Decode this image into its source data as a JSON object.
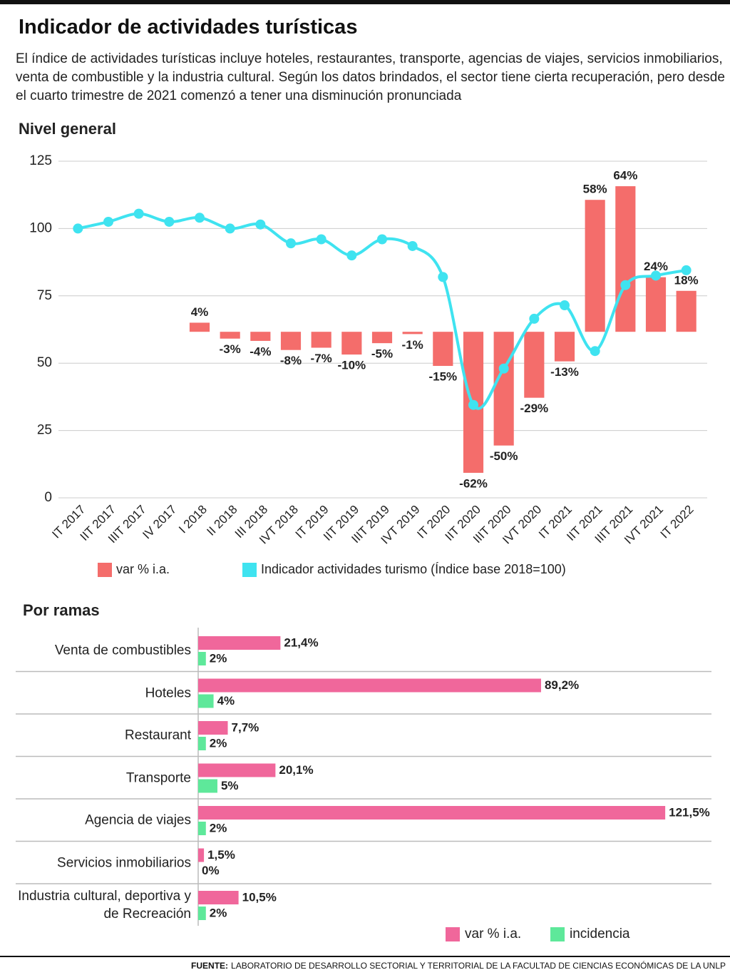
{
  "header": {
    "title": "Indicador de actividades turísticas",
    "subtitle": "El índice de actividades turísticas incluye hoteles, restaurantes,  transporte, agencias de viajes, servicios inmobiliarios, venta de combustible y la industria cultural. Según los datos brindados, el sector tiene cierta recuperación, pero desde el cuarto trimestre de 2021 comenzó a tener una disminución pronunciada"
  },
  "chart_data": [
    {
      "type": "combo",
      "title": "Nivel general",
      "categories": [
        "IT 2017",
        "IIT 2017",
        "IIIT 2017",
        "IV 2017",
        "I 2018",
        "II 2018",
        "III 2018",
        "IVT 2018",
        "IT 2019",
        "IIT 2019",
        "IIIT 2019",
        "IVT 2019",
        "IT 2020",
        "IIT 2020",
        "IIIT 2020",
        "IVT 2020",
        "IT 2021",
        "IIT 2021",
        "IIIT 2021",
        "IVT 2021",
        "IT 2022"
      ],
      "ylim": [
        0,
        125
      ],
      "yticks": [
        0,
        25,
        50,
        75,
        100,
        125
      ],
      "y2lim": [
        -73,
        75
      ],
      "grid": true,
      "series": [
        {
          "name": "var % i.a.",
          "type": "bar",
          "axis": "y2",
          "color": "#f46d6b",
          "values": [
            null,
            null,
            null,
            null,
            4,
            -3,
            -4,
            -8,
            -7,
            -10,
            -5,
            -1,
            -15,
            -62,
            -50,
            -29,
            -13,
            58,
            64,
            24,
            18
          ],
          "value_labels": [
            null,
            null,
            null,
            null,
            "4%",
            "-3%",
            "-4%",
            "-8%",
            "-7%",
            "-10%",
            "-5%",
            "-1%",
            "-15%",
            "-62%",
            "-50%",
            "-29%",
            "-13%",
            "58%",
            "64%",
            "24%",
            "18%"
          ]
        },
        {
          "name": "Indicador actividades turismo (Índice base 2018=100)",
          "type": "line",
          "color": "#3fe3f0",
          "values": [
            100,
            102.5,
            105.5,
            102.5,
            104,
            100,
            101.5,
            94.5,
            96,
            90,
            96,
            93.5,
            82,
            34.5,
            48,
            66.5,
            71.5,
            54.5,
            79,
            82.5,
            84.5
          ]
        }
      ]
    },
    {
      "type": "hbar",
      "title": "Por ramas",
      "categories": [
        "Venta de combustibles",
        "Hoteles",
        "Restaurant",
        "Transporte",
        "Agencia de viajes",
        "Servicios inmobiliarios",
        "Industria cultural, deportiva y de Recreación"
      ],
      "xlim": [
        0,
        125
      ],
      "series": [
        {
          "name": "var % i.a.",
          "color": "#f0679b",
          "values": [
            21.4,
            89.2,
            7.7,
            20.1,
            121.5,
            1.5,
            10.5
          ],
          "value_labels": [
            "21,4%",
            "89,2%",
            "7,7%",
            "20,1%",
            "121,5%",
            "1,5%",
            "10,5%"
          ]
        },
        {
          "name": "incidencia",
          "color": "#5ee89a",
          "values": [
            2,
            4,
            2,
            5,
            2,
            0,
            2
          ],
          "value_labels": [
            "2%",
            "4%",
            "2%",
            "5%",
            "2%",
            "0%",
            "2%"
          ]
        }
      ]
    }
  ],
  "footer": {
    "source_label": "FUENTE:",
    "source": "LABORATORIO DE DESARROLLO SECTORIAL Y TERRITORIAL DE LA FACULTAD DE CIENCIAS ECONÓMICAS DE LA UNLP"
  }
}
